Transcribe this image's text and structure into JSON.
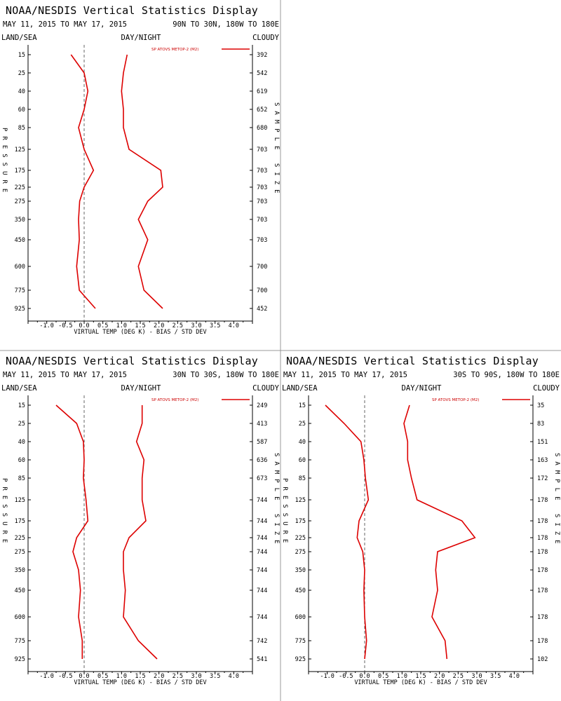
{
  "page_title": "NOAA/NESDIS Vertical Statistics Display",
  "colors": {
    "series": "#dd0000",
    "axis": "#000000",
    "zero_line": "#666666",
    "divider": "#999999"
  },
  "chart_data": [
    {
      "type": "line",
      "title": "NOAA/NESDIS Vertical Statistics Display",
      "date_range": "MAY 11, 2015 TO MAY 17, 2015",
      "region": "90N TO 30N, 180W TO 180E",
      "left_header": "LAND/SEA",
      "center_header": "DAY/NIGHT",
      "right_header": "CLOUDY",
      "left_axis_label": "PRESSURE",
      "right_axis_label": "SAMPLE SIZE",
      "xlabel": "VIRTUAL TEMP (DEG K) - BIAS / STD DEV",
      "xlim": [
        -1.5,
        4.5
      ],
      "x_ticks": [
        "-1.0",
        "-0.5",
        "0.0",
        "0.5",
        "1.0",
        "1.5",
        "2.0",
        "2.5",
        "3.0",
        "3.5",
        "4.0"
      ],
      "pressure_levels": [
        "15",
        "25",
        "40",
        "60",
        "85",
        "125",
        "175",
        "225",
        "275",
        "350",
        "450",
        "600",
        "775",
        "925"
      ],
      "sample_sizes": [
        "392",
        "542",
        "619",
        "652",
        "680",
        "703",
        "703",
        "703",
        "703",
        "703",
        "703",
        "700",
        "700",
        "452"
      ],
      "legend_label": "SP ATOVS METOP-2 (M2)",
      "series": [
        {
          "name": "BIAS",
          "values": [
            -0.35,
            0.0,
            0.1,
            0.0,
            -0.15,
            0.0,
            0.25,
            0.0,
            -0.12,
            -0.15,
            -0.13,
            -0.2,
            -0.13,
            0.3
          ]
        },
        {
          "name": "STD DEV",
          "values": [
            1.15,
            1.05,
            1.0,
            1.05,
            1.05,
            1.2,
            2.05,
            2.1,
            1.7,
            1.45,
            1.7,
            1.45,
            1.6,
            2.1
          ]
        }
      ],
      "grid": false
    },
    {
      "type": "line",
      "title": "NOAA/NESDIS Vertical Statistics Display",
      "date_range": "MAY 11, 2015 TO MAY 17, 2015",
      "region": "30N TO 30S, 180W TO 180E",
      "left_header": "LAND/SEA",
      "center_header": "DAY/NIGHT",
      "right_header": "CLOUDY",
      "left_axis_label": "PRESSURE",
      "right_axis_label": "SAMPLE SIZE",
      "xlabel": "VIRTUAL TEMP (DEG K) - BIAS / STD DEV",
      "xlim": [
        -1.5,
        4.5
      ],
      "x_ticks": [
        "-1.0",
        "-0.5",
        "0.0",
        "0.5",
        "1.0",
        "1.5",
        "2.0",
        "2.5",
        "3.0",
        "3.5",
        "4.0"
      ],
      "pressure_levels": [
        "15",
        "25",
        "40",
        "60",
        "85",
        "125",
        "175",
        "225",
        "275",
        "350",
        "450",
        "600",
        "775",
        "925"
      ],
      "sample_sizes": [
        "249",
        "413",
        "587",
        "636",
        "673",
        "744",
        "744",
        "744",
        "744",
        "744",
        "744",
        "744",
        "742",
        "541"
      ],
      "legend_label": "SP ATOVS METOP-2 (M2)",
      "series": [
        {
          "name": "BIAS",
          "values": [
            -0.75,
            -0.2,
            -0.02,
            0.0,
            -0.02,
            0.05,
            0.1,
            -0.2,
            -0.3,
            -0.15,
            -0.1,
            -0.15,
            -0.05,
            -0.05
          ]
        },
        {
          "name": "STD DEV",
          "values": [
            1.55,
            1.55,
            1.4,
            1.6,
            1.55,
            1.55,
            1.65,
            1.2,
            1.05,
            1.05,
            1.1,
            1.05,
            1.45,
            1.95
          ]
        }
      ],
      "grid": false
    },
    {
      "type": "line",
      "title": "NOAA/NESDIS Vertical Statistics Display",
      "date_range": "MAY 11, 2015 TO MAY 17, 2015",
      "region": "30S TO 90S, 180W TO 180E",
      "left_header": "LAND/SEA",
      "center_header": "DAY/NIGHT",
      "right_header": "CLOUDY",
      "left_axis_label": "PRESSURE",
      "right_axis_label": "SAMPLE SIZE",
      "xlabel": "VIRTUAL TEMP (DEG K) - BIAS / STD DEV",
      "xlim": [
        -1.5,
        4.5
      ],
      "x_ticks": [
        "-1.0",
        "-0.5",
        "0.0",
        "0.5",
        "1.0",
        "1.5",
        "2.0",
        "2.5",
        "3.0",
        "3.5",
        "4.0"
      ],
      "pressure_levels": [
        "15",
        "25",
        "40",
        "60",
        "85",
        "125",
        "175",
        "225",
        "275",
        "350",
        "450",
        "600",
        "775",
        "925"
      ],
      "sample_sizes": [
        "35",
        "83",
        "151",
        "163",
        "172",
        "178",
        "178",
        "178",
        "178",
        "178",
        "178",
        "178",
        "178",
        "102"
      ],
      "legend_label": "SP ATOVS METOP-2 (M2)",
      "series": [
        {
          "name": "BIAS",
          "values": [
            -1.05,
            -0.55,
            -0.1,
            -0.02,
            0.02,
            0.1,
            -0.15,
            -0.2,
            -0.05,
            0.0,
            -0.02,
            0.0,
            0.05,
            0.0
          ]
        },
        {
          "name": "STD DEV",
          "values": [
            1.2,
            1.05,
            1.15,
            1.15,
            1.25,
            1.4,
            2.6,
            2.95,
            1.95,
            1.9,
            1.95,
            1.8,
            2.15,
            2.2
          ]
        }
      ],
      "grid": false
    }
  ]
}
